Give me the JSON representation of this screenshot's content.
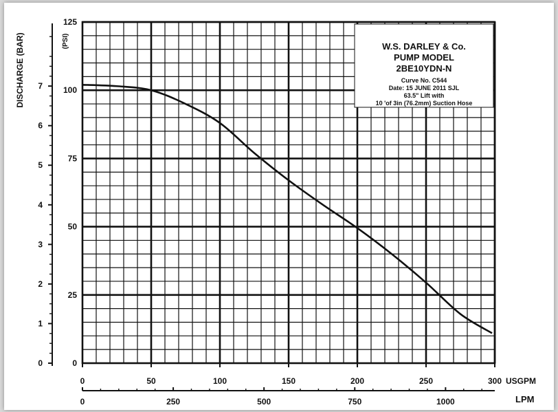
{
  "chart_data": {
    "type": "line",
    "info_box": {
      "lines": [
        "W.S. DARLEY & Co.",
        "PUMP MODEL",
        "2BE10YDN-N",
        "Curve No. C544",
        "Date: 15 JUNE 2011  SJL",
        "63.5\" Lift with",
        "10 'of 3in (76.2mm) Suction Hose"
      ]
    },
    "left_axis_label": "DISCHARGE (BAR)",
    "psi_axis_label": "(PSI)",
    "x_unit_label": "USGPM",
    "x2_unit_label": "LPM",
    "x_ticks": [
      "0",
      "50",
      "100",
      "150",
      "200",
      "250",
      "300"
    ],
    "x2_ticks": [
      "0",
      "250",
      "500",
      "750",
      "1000"
    ],
    "psi_ticks": [
      "0",
      "25",
      "50",
      "75",
      "100",
      "125"
    ],
    "bar_ticks": [
      "0",
      "1",
      "2",
      "3",
      "4",
      "5",
      "6",
      "7"
    ],
    "xlim": [
      0,
      300
    ],
    "ylim_psi": [
      0,
      125
    ],
    "grid": true,
    "series": [
      {
        "x": [
          0,
          25,
          50,
          75,
          100,
          125,
          150,
          175,
          200,
          225,
          250,
          275,
          298
        ],
        "y": [
          102,
          101.5,
          100,
          95,
          88,
          77,
          67,
          58,
          49.5,
          40,
          29.5,
          18,
          11
        ]
      }
    ]
  }
}
